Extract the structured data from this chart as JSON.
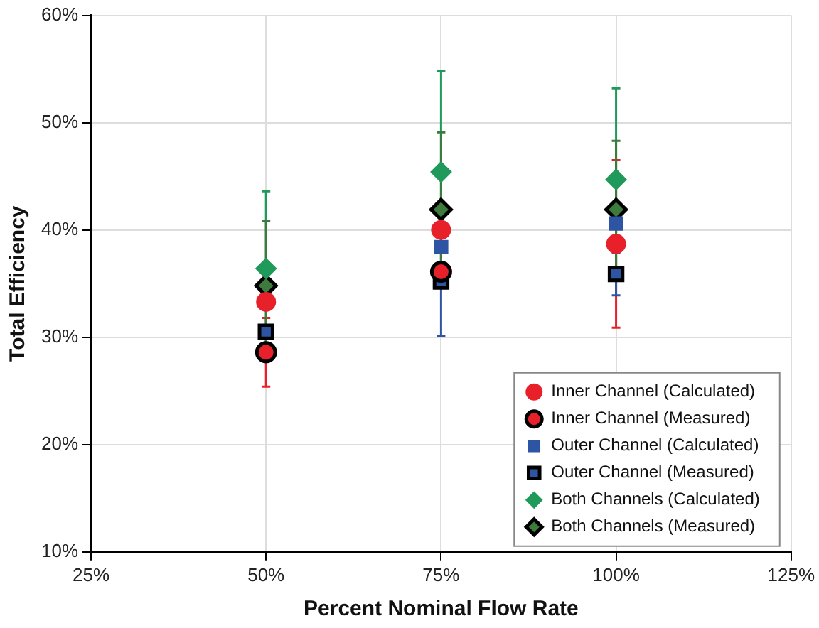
{
  "chart_data": {
    "type": "scatter",
    "xlabel": "Percent Nominal Flow Rate",
    "ylabel": "Total Efficiency",
    "x": [
      50,
      75,
      100
    ],
    "xlim": [
      25,
      125
    ],
    "xticks": [
      {
        "value": 25,
        "label": "25%"
      },
      {
        "value": 50,
        "label": "50%"
      },
      {
        "value": 75,
        "label": "75%"
      },
      {
        "value": 100,
        "label": "100%"
      },
      {
        "value": 125,
        "label": "125%"
      }
    ],
    "ylim": [
      10,
      60
    ],
    "yticks": [
      {
        "value": 10,
        "label": "10%"
      },
      {
        "value": 20,
        "label": "20%"
      },
      {
        "value": 30,
        "label": "30%"
      },
      {
        "value": 40,
        "label": "40%"
      },
      {
        "value": 50,
        "label": "50%"
      },
      {
        "value": 60,
        "label": "60%"
      }
    ],
    "grid": true,
    "legend": "bottom right",
    "series": [
      {
        "name": "Inner Channel (Calculated)",
        "color": "#e8202a",
        "marker": "circle",
        "values": [
          33.3,
          40.0,
          38.7
        ],
        "errors": [
          null,
          null,
          7.8
        ]
      },
      {
        "name": "Inner Channel (Measured)",
        "color": "#e8202a",
        "marker": "circle",
        "values": [
          28.6,
          36.1,
          null
        ],
        "errors": [
          3.2,
          null,
          null
        ]
      },
      {
        "name": "Outer Channel (Calculated)",
        "color": "#2e55a4",
        "marker": "square",
        "values": [
          null,
          38.4,
          40.6
        ]
      },
      {
        "name": "Outer Channel (Measured)",
        "color": "#2e55a4",
        "marker": "square",
        "values": [
          30.5,
          35.2,
          35.9
        ],
        "errors": [
          null,
          5.1,
          2.0
        ]
      },
      {
        "name": "Both Channels (Calculated)",
        "color": "#1f9a5a",
        "marker": "diamond",
        "values": [
          36.4,
          45.4,
          44.7
        ],
        "errors": [
          7.2,
          9.4,
          8.5
        ]
      },
      {
        "name": "Both Channels (Measured)",
        "color": "#3d7a3d",
        "marker": "diamond",
        "values": [
          34.8,
          41.9,
          41.9
        ],
        "errors": [
          6.0,
          7.2,
          6.4
        ]
      }
    ]
  }
}
